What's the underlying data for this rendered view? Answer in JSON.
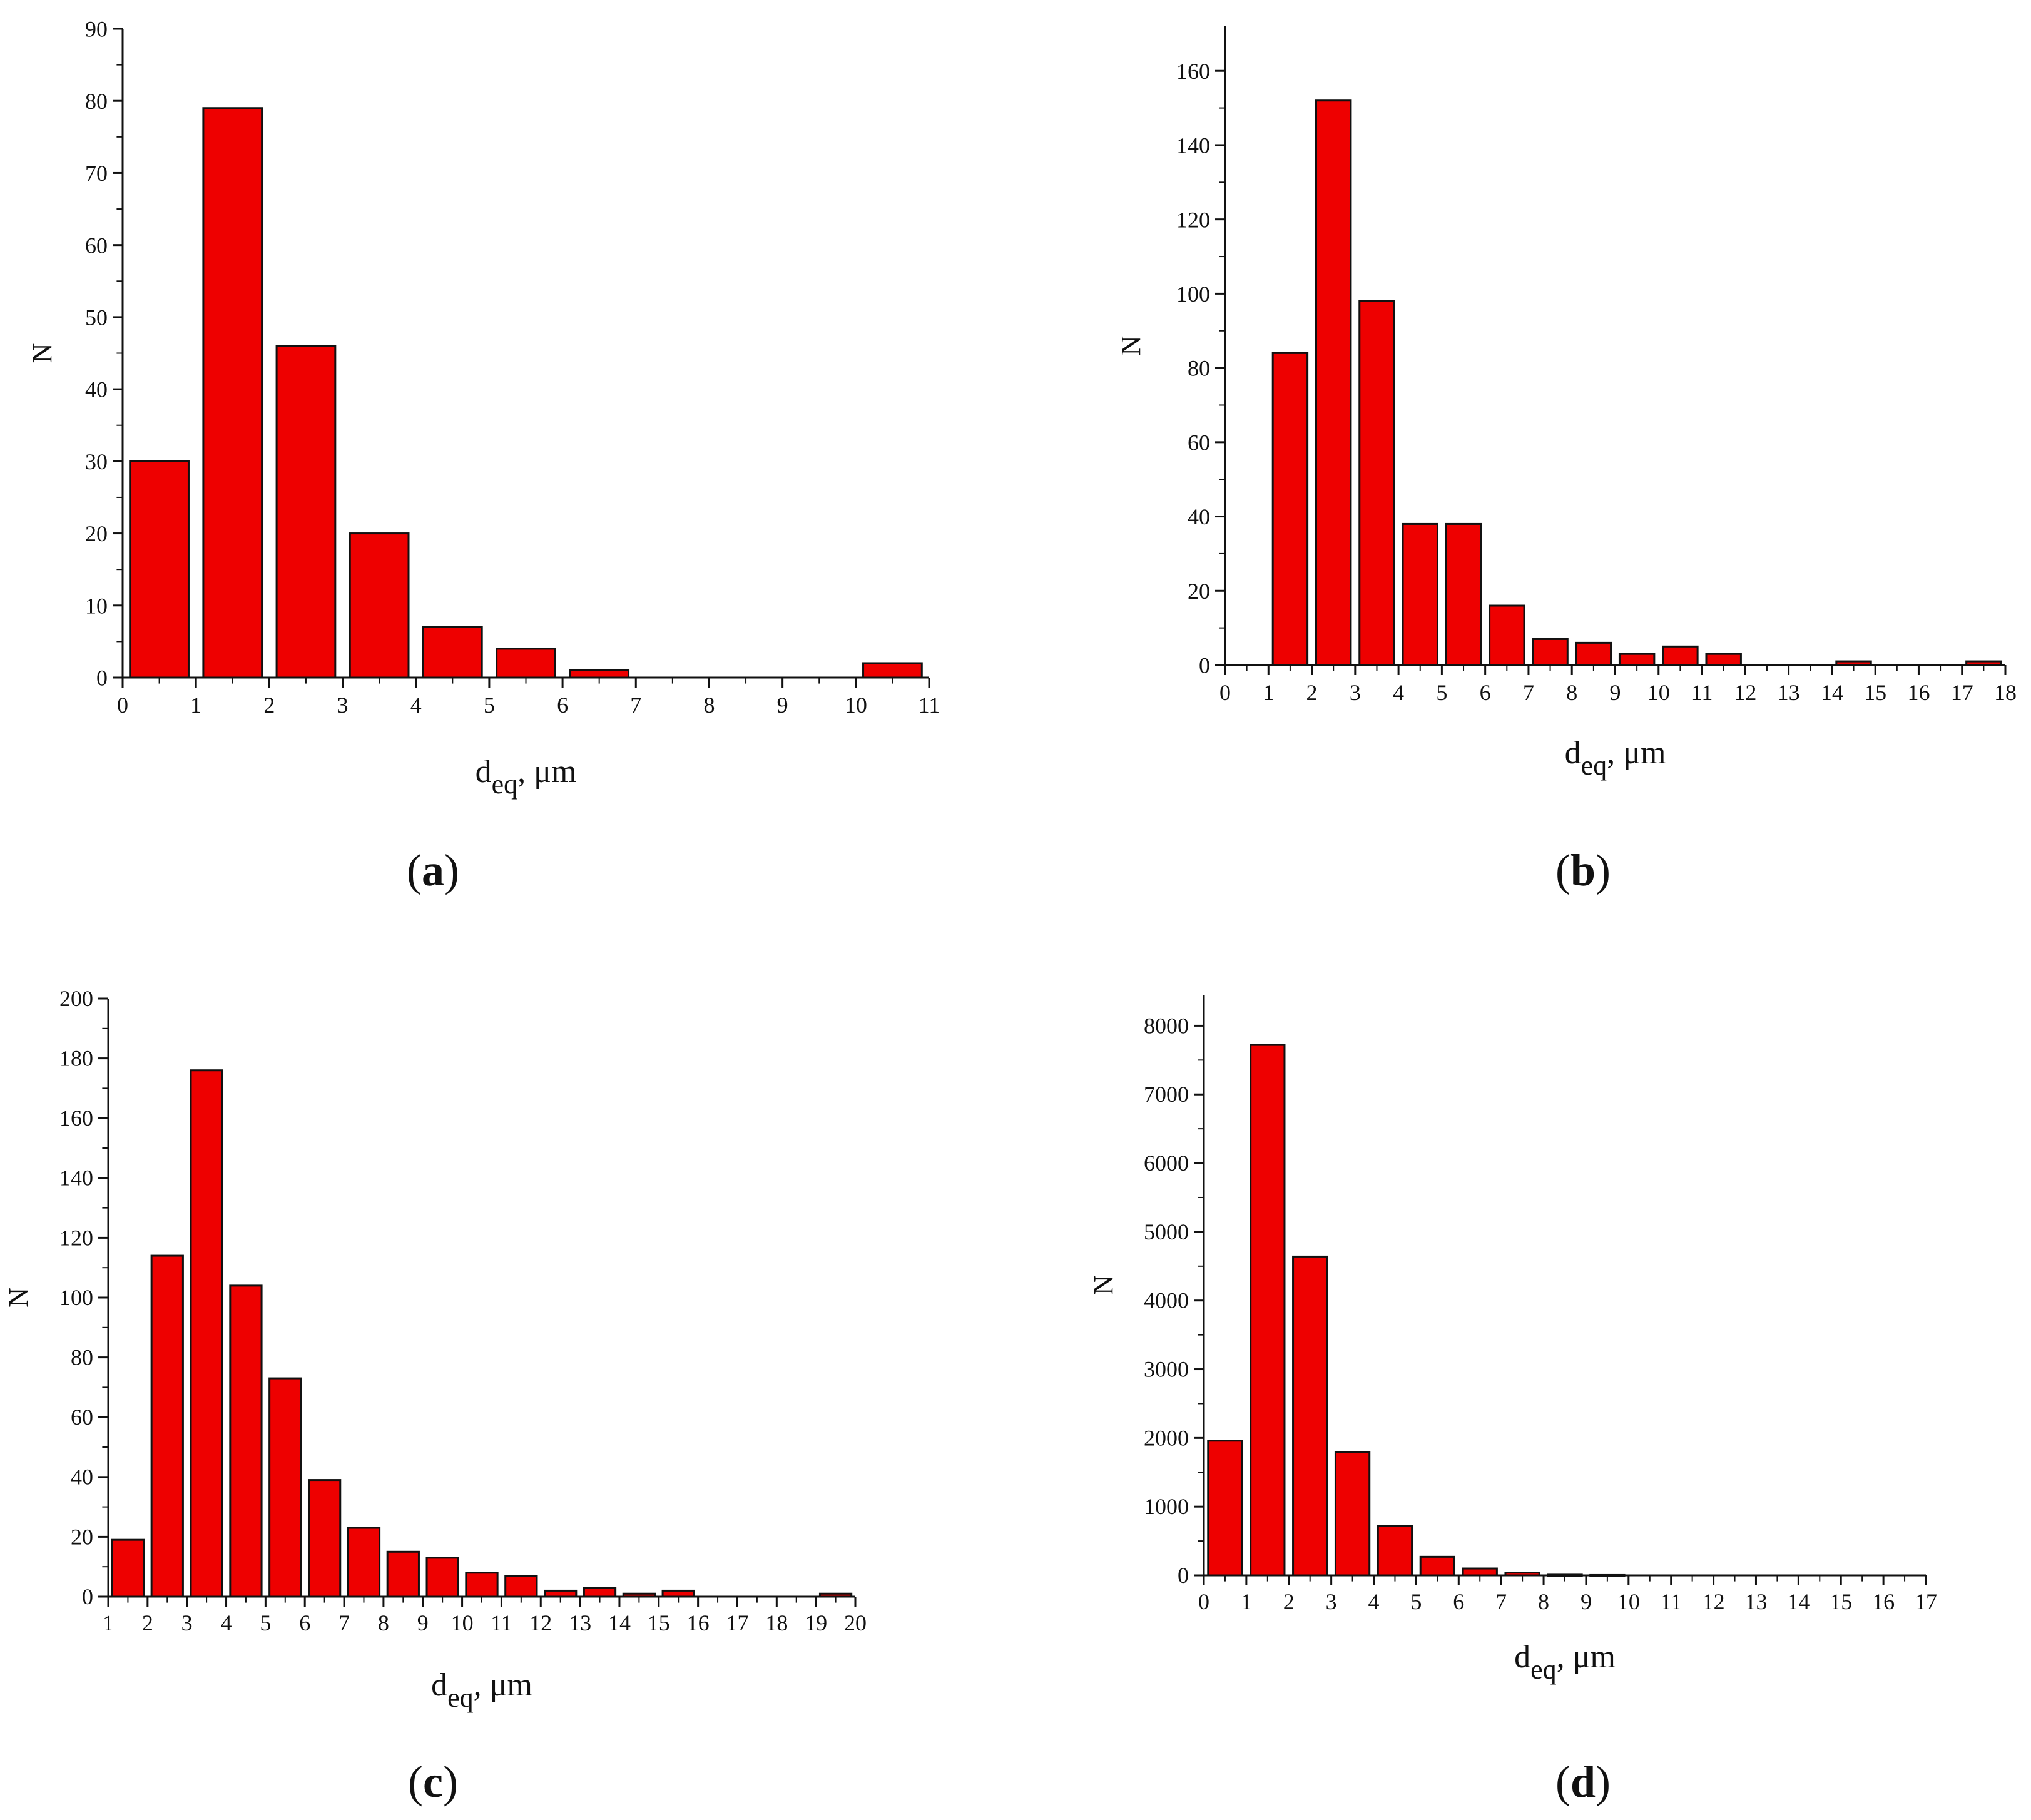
{
  "figure": {
    "bar_color": "#ee0000",
    "bar_stroke": "#111111",
    "axis_color": "#111111"
  },
  "chart_data": [
    {
      "panel": "a",
      "panel_label": "a",
      "type": "bar",
      "title": "",
      "xlabel": "d",
      "xlabel_sub": "eq",
      "xlabel_unit": ", μm",
      "ylabel": "N",
      "xlim": [
        0,
        11
      ],
      "ylim": [
        0,
        90
      ],
      "xticks": [
        0,
        1,
        2,
        3,
        4,
        5,
        6,
        7,
        8,
        9,
        10,
        11
      ],
      "yticks": [
        0,
        10,
        20,
        30,
        40,
        50,
        60,
        70,
        80,
        90
      ],
      "bin_width": 1,
      "bins": [
        {
          "start": 0,
          "value": 30
        },
        {
          "start": 1,
          "value": 79
        },
        {
          "start": 2,
          "value": 46
        },
        {
          "start": 3,
          "value": 20
        },
        {
          "start": 4,
          "value": 7
        },
        {
          "start": 5,
          "value": 4
        },
        {
          "start": 6,
          "value": 1
        },
        {
          "start": 10,
          "value": 2
        }
      ]
    },
    {
      "panel": "b",
      "panel_label": "b",
      "type": "bar",
      "title": "",
      "xlabel": "d",
      "xlabel_sub": "eq",
      "xlabel_unit": ", μm",
      "ylabel": "N",
      "xlim": [
        0,
        18
      ],
      "ylim": [
        0,
        172
      ],
      "xticks": [
        0,
        1,
        2,
        3,
        4,
        5,
        6,
        7,
        8,
        9,
        10,
        11,
        12,
        13,
        14,
        15,
        16,
        17,
        18
      ],
      "yticks": [
        0,
        20,
        40,
        60,
        80,
        100,
        120,
        140,
        160
      ],
      "bin_width": 1,
      "bins": [
        {
          "start": 1,
          "value": 84
        },
        {
          "start": 2,
          "value": 152
        },
        {
          "start": 3,
          "value": 98
        },
        {
          "start": 4,
          "value": 38
        },
        {
          "start": 5,
          "value": 38
        },
        {
          "start": 6,
          "value": 16
        },
        {
          "start": 7,
          "value": 7
        },
        {
          "start": 8,
          "value": 6
        },
        {
          "start": 9,
          "value": 3
        },
        {
          "start": 10,
          "value": 5
        },
        {
          "start": 11,
          "value": 3
        },
        {
          "start": 14,
          "value": 1
        },
        {
          "start": 17,
          "value": 1
        }
      ]
    },
    {
      "panel": "c",
      "panel_label": "c",
      "type": "bar",
      "title": "",
      "xlabel": "d",
      "xlabel_sub": "eq",
      "xlabel_unit": ", μm",
      "ylabel": "N",
      "xlim": [
        1,
        20
      ],
      "ylim": [
        0,
        200
      ],
      "xticks": [
        1,
        2,
        3,
        4,
        5,
        6,
        7,
        8,
        9,
        10,
        11,
        12,
        13,
        14,
        15,
        16,
        17,
        18,
        19,
        20
      ],
      "yticks": [
        0,
        20,
        40,
        60,
        80,
        100,
        120,
        140,
        160,
        180,
        200
      ],
      "bin_width": 1,
      "bins": [
        {
          "start": 1,
          "value": 19
        },
        {
          "start": 2,
          "value": 114
        },
        {
          "start": 3,
          "value": 176
        },
        {
          "start": 4,
          "value": 104
        },
        {
          "start": 5,
          "value": 73
        },
        {
          "start": 6,
          "value": 39
        },
        {
          "start": 7,
          "value": 23
        },
        {
          "start": 8,
          "value": 15
        },
        {
          "start": 9,
          "value": 13
        },
        {
          "start": 10,
          "value": 8
        },
        {
          "start": 11,
          "value": 7
        },
        {
          "start": 12,
          "value": 2
        },
        {
          "start": 13,
          "value": 3
        },
        {
          "start": 14,
          "value": 1
        },
        {
          "start": 15,
          "value": 2
        },
        {
          "start": 19,
          "value": 1
        }
      ]
    },
    {
      "panel": "d",
      "panel_label": "d",
      "type": "bar",
      "title": "",
      "xlabel": "d",
      "xlabel_sub": "eq",
      "xlabel_unit": ", μm",
      "ylabel": "N",
      "xlim": [
        0,
        17
      ],
      "ylim": [
        0,
        8450
      ],
      "xticks": [
        0,
        1,
        2,
        3,
        4,
        5,
        6,
        7,
        8,
        9,
        10,
        11,
        12,
        13,
        14,
        15,
        16,
        17
      ],
      "yticks": [
        0,
        1000,
        2000,
        3000,
        4000,
        5000,
        6000,
        7000,
        8000
      ],
      "bin_width": 1,
      "bins": [
        {
          "start": 0,
          "value": 1960
        },
        {
          "start": 1,
          "value": 7720
        },
        {
          "start": 2,
          "value": 4640
        },
        {
          "start": 3,
          "value": 1790
        },
        {
          "start": 4,
          "value": 720
        },
        {
          "start": 5,
          "value": 270
        },
        {
          "start": 6,
          "value": 100
        },
        {
          "start": 7,
          "value": 40
        },
        {
          "start": 8,
          "value": 10
        },
        {
          "start": 9,
          "value": 5
        }
      ]
    }
  ]
}
